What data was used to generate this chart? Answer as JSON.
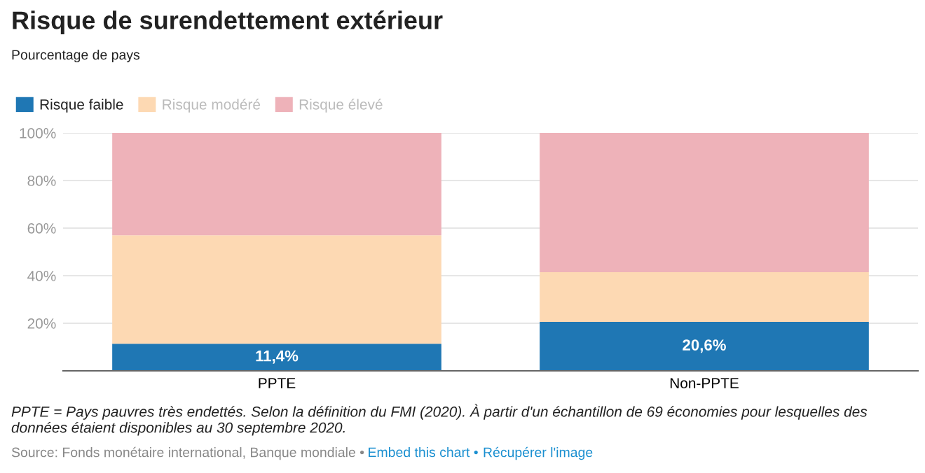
{
  "chart_data": {
    "type": "bar",
    "stacked": true,
    "title": "Risque de surendettement extérieur",
    "subtitle": "Pourcentage de pays",
    "categories": [
      "PPTE",
      "Non-PPTE"
    ],
    "series": [
      {
        "name": "Risque faible",
        "color": "#1f77b4",
        "values": [
          11.4,
          20.6
        ],
        "value_labels": [
          "11,4%",
          "20,6%"
        ]
      },
      {
        "name": "Risque modéré",
        "color": "#fdd9b3",
        "values": [
          45.6,
          20.9
        ]
      },
      {
        "name": "Risque élevé",
        "color": "#eeb2b9",
        "values": [
          43.0,
          58.5
        ]
      }
    ],
    "ylim": [
      0,
      100
    ],
    "yticks": [
      {
        "value": 20,
        "label": "20%"
      },
      {
        "value": 40,
        "label": "40%"
      },
      {
        "value": 60,
        "label": "60%"
      },
      {
        "value": 80,
        "label": "80%"
      },
      {
        "value": 100,
        "label": "100%"
      }
    ],
    "grid": "y",
    "legend": "top left",
    "annotations": [
      "PPTE = Pays pauvres très endettés. Selon la définition du FMI (2020). À partir d'un échantillon de 69 économies pour lesquelles des données étaient disponibles au 30 septembre 2020.",
      "Source: Fonds monétaire international, Banque mondiale •",
      "Embed this chart •",
      "Récupérer l'image"
    ]
  }
}
